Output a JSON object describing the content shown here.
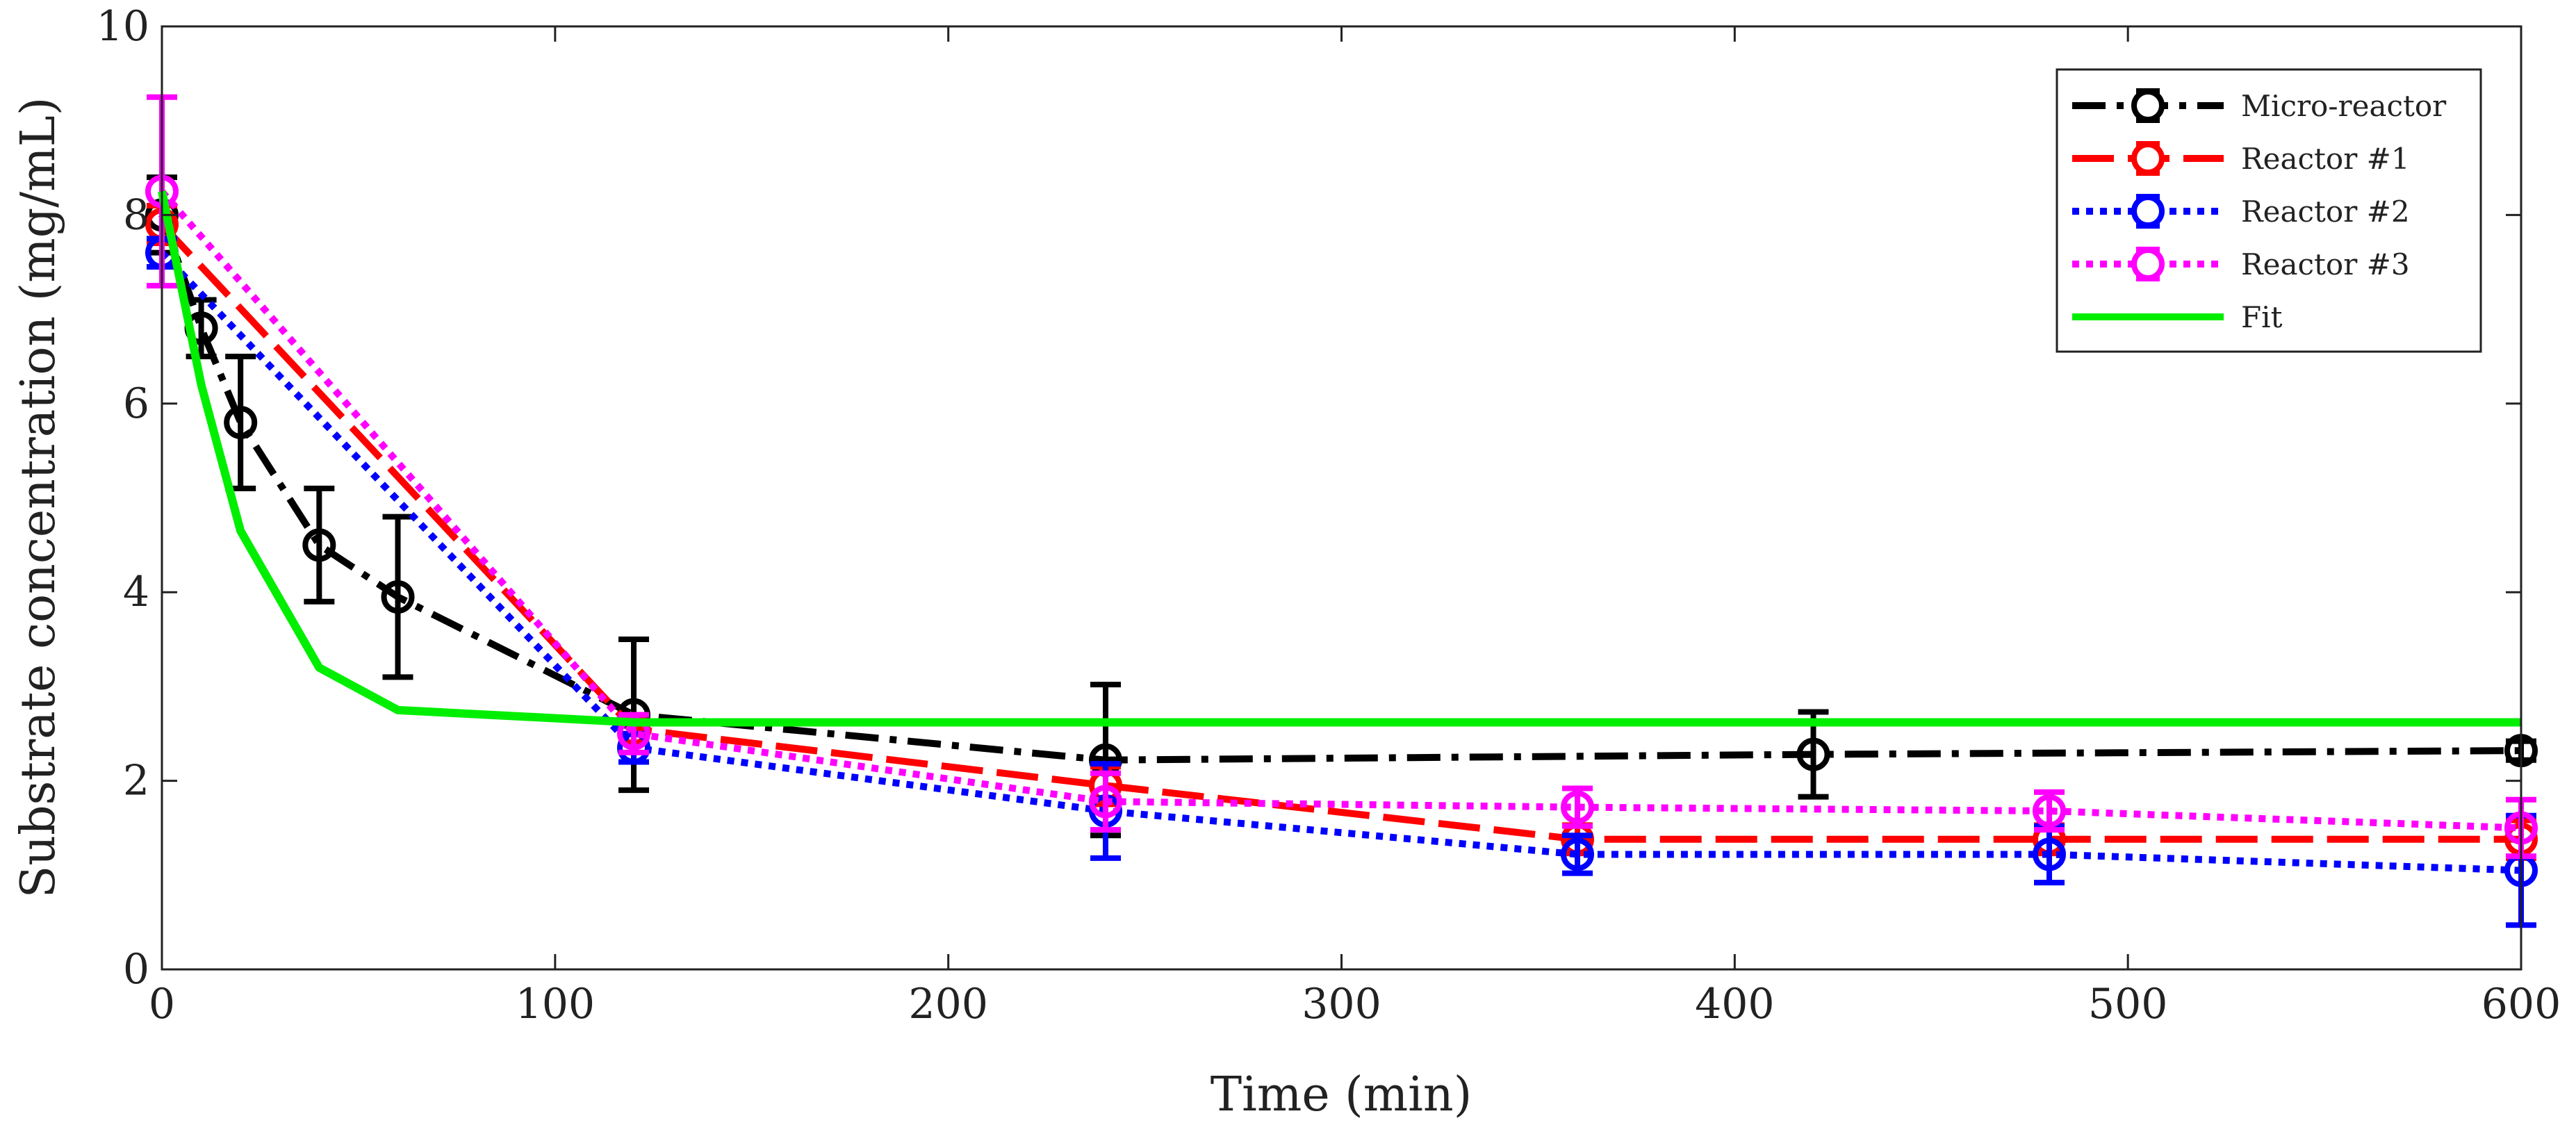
{
  "chart_data": {
    "type": "line",
    "title": "",
    "xlabel": "Time (min)",
    "ylabel": "Substrate concentration (mg/mL)",
    "xlim": [
      0,
      600
    ],
    "ylim": [
      0,
      10
    ],
    "xticks": [
      0,
      100,
      200,
      300,
      400,
      500,
      600
    ],
    "yticks": [
      0,
      2,
      4,
      6,
      8,
      10
    ],
    "grid": false,
    "legend_position": "top-right",
    "series": [
      {
        "name": "Micro-reactor",
        "color": "#000000",
        "dash": "dashdot",
        "marker": "circle",
        "x": [
          0,
          10,
          20,
          40,
          60,
          120,
          240,
          420,
          600
        ],
        "y": [
          8.0,
          6.8,
          5.8,
          4.5,
          3.95,
          2.7,
          2.22,
          2.28,
          2.32
        ],
        "err": [
          0.4,
          0.3,
          0.7,
          0.6,
          0.85,
          0.8,
          0.8,
          0.45,
          0.1
        ]
      },
      {
        "name": "Reactor #1",
        "color": "#ff0000",
        "dash": "longdash",
        "marker": "circle",
        "x": [
          0,
          120,
          240,
          360,
          480,
          600
        ],
        "y": [
          7.9,
          2.55,
          1.95,
          1.38,
          1.38,
          1.38
        ],
        "err": [
          0.2,
          0.15,
          0.2,
          0.15,
          0.15,
          0.2
        ]
      },
      {
        "name": "Reactor #2",
        "color": "#0000ff",
        "dash": "dotted",
        "marker": "circle",
        "x": [
          0,
          120,
          240,
          360,
          480,
          600
        ],
        "y": [
          7.6,
          2.35,
          1.68,
          1.22,
          1.22,
          1.05
        ],
        "err": [
          0.15,
          0.15,
          0.5,
          0.2,
          0.3,
          0.58
        ]
      },
      {
        "name": "Reactor #3",
        "color": "#ff00ff",
        "dash": "dotted",
        "marker": "circle",
        "x": [
          0,
          120,
          240,
          360,
          480,
          600
        ],
        "y": [
          8.25,
          2.5,
          1.78,
          1.72,
          1.68,
          1.5
        ],
        "err": [
          1.0,
          0.2,
          0.3,
          0.2,
          0.2,
          0.3
        ]
      },
      {
        "name": "Fit",
        "color": "#00ee00",
        "dash": "solid",
        "marker": "none",
        "x": [
          0,
          10,
          20,
          40,
          60,
          120,
          240,
          420,
          600
        ],
        "y": [
          8.25,
          6.2,
          4.65,
          3.2,
          2.75,
          2.62,
          2.62,
          2.62,
          2.62
        ]
      }
    ]
  }
}
